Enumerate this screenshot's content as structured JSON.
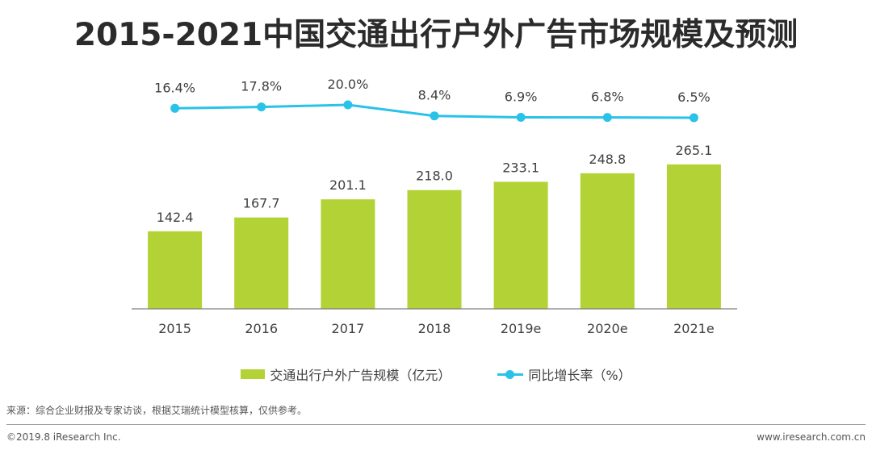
{
  "colors": {
    "bar": "#b2d235",
    "line": "#29c2e8",
    "axis": "#7f7f7f"
  },
  "chart_data": {
    "type": "bar+line",
    "title": "2015-2021中国交通出行户外广告市场规模及预测",
    "categories": [
      "2015",
      "2016",
      "2017",
      "2018",
      "2019e",
      "2020e",
      "2021e"
    ],
    "series": [
      {
        "name": "交通出行户外广告规模（亿元）",
        "type": "bar",
        "axis": "left",
        "values": [
          142.4,
          167.7,
          201.1,
          218.0,
          233.1,
          248.8,
          265.1
        ],
        "labels": [
          "142.4",
          "167.7",
          "201.1",
          "218.0",
          "233.1",
          "248.8",
          "265.1"
        ]
      },
      {
        "name": "同比增长率（%）",
        "type": "line",
        "axis": "right",
        "values": [
          16.4,
          17.8,
          20.0,
          8.4,
          6.9,
          6.8,
          6.5
        ],
        "labels": [
          "16.4%",
          "17.8%",
          "20.0%",
          "8.4%",
          "6.9%",
          "6.8%",
          "6.5%"
        ]
      }
    ],
    "ylim_bar": [
      0,
      300
    ],
    "ylim_line_visible": [
      6.5,
      20.0
    ],
    "grid": false,
    "legend_position": "bottom-center"
  },
  "footer": {
    "source": "来源：综合企业财报及专家访谈，根据艾瑞统计模型核算，仅供参考。",
    "copyright": "©2019.8 iResearch Inc.",
    "website": "www.iresearch.com.cn"
  }
}
